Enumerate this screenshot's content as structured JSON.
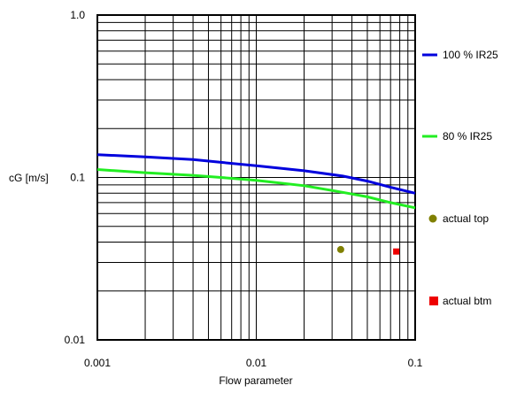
{
  "chart_data": {
    "type": "line",
    "xlabel": "Flow parameter",
    "ylabel": "cG [m/s]",
    "x_scale": "log",
    "y_scale": "log",
    "xlim": [
      0.001,
      0.1
    ],
    "ylim": [
      0.01,
      1.0
    ],
    "grid": true,
    "legend_position": "right",
    "x_ticks": [
      {
        "value": 0.001,
        "label": "0.001"
      },
      {
        "value": 0.01,
        "label": "0.01"
      },
      {
        "value": 0.1,
        "label": "0.1"
      }
    ],
    "y_ticks": [
      {
        "value": 0.01,
        "label": "0.01"
      },
      {
        "value": 0.1,
        "label": "0.1"
      },
      {
        "value": 1.0,
        "label": "1.0"
      }
    ],
    "series": [
      {
        "name": "100 % IR25",
        "kind": "line",
        "color": "#0000dd",
        "x": [
          0.001,
          0.002,
          0.004,
          0.006,
          0.01,
          0.02,
          0.035,
          0.05,
          0.07,
          0.1
        ],
        "y": [
          0.138,
          0.134,
          0.129,
          0.124,
          0.118,
          0.11,
          0.102,
          0.095,
          0.087,
          0.08
        ]
      },
      {
        "name": "80 % IR25",
        "kind": "line",
        "color": "#22ee22",
        "x": [
          0.001,
          0.002,
          0.004,
          0.006,
          0.01,
          0.02,
          0.035,
          0.05,
          0.07,
          0.1
        ],
        "y": [
          0.112,
          0.107,
          0.103,
          0.1,
          0.096,
          0.089,
          0.081,
          0.076,
          0.07,
          0.065
        ]
      },
      {
        "name": "actual top",
        "kind": "point",
        "marker": "circle",
        "color": "#808000",
        "x": [
          0.034
        ],
        "y": [
          0.036
        ]
      },
      {
        "name": "actual btm",
        "kind": "point",
        "marker": "square",
        "color": "#ee0000",
        "x": [
          0.076
        ],
        "y": [
          0.035
        ]
      }
    ]
  }
}
